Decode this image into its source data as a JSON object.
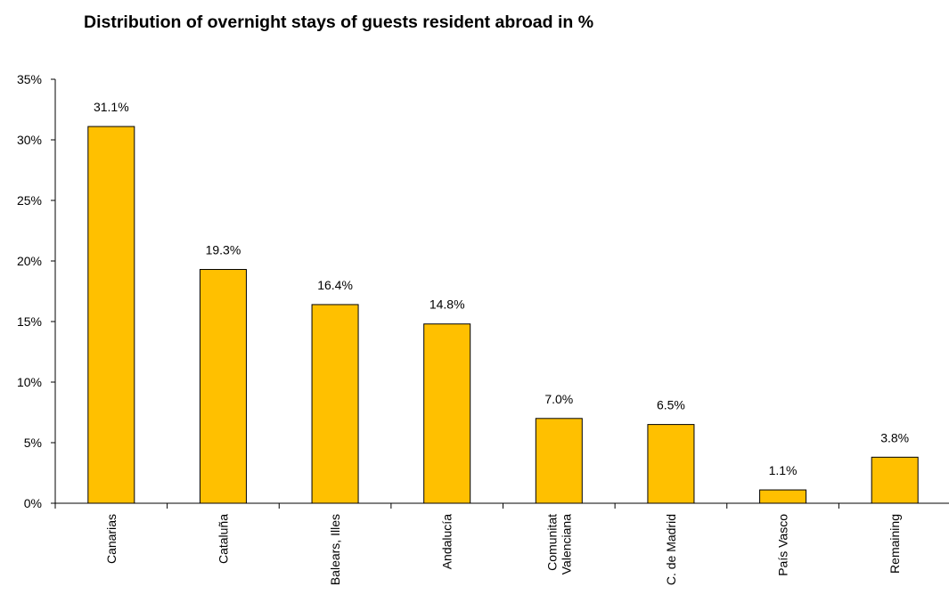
{
  "chart_data": {
    "type": "bar",
    "title": "Distribution of overnight stays of guests resident abroad in %",
    "xlabel": "",
    "ylabel": "",
    "categories": [
      "Canarias",
      "Cataluña",
      "Balears, Illes",
      "Andalucía",
      "Comunitat Valenciana",
      "C. de Madrid",
      "País Vasco",
      "Remaining"
    ],
    "category_label_lines": [
      [
        "Canarias"
      ],
      [
        "Cataluña"
      ],
      [
        "Balears, Illes"
      ],
      [
        "Andalucía"
      ],
      [
        "Comunitat",
        "Valenciana"
      ],
      [
        "C. de Madrid"
      ],
      [
        "País Vasco"
      ],
      [
        "Remaining"
      ]
    ],
    "values": [
      31.1,
      19.3,
      16.4,
      14.8,
      7.0,
      6.5,
      1.1,
      3.8
    ],
    "data_labels": [
      "31.1%",
      "19.3%",
      "16.4%",
      "14.8%",
      "7.0%",
      "6.5%",
      "1.1%",
      "3.8%"
    ],
    "ylim": [
      0,
      35
    ],
    "yticks": [
      0,
      5,
      10,
      15,
      20,
      25,
      30,
      35
    ],
    "ytick_labels": [
      "0%",
      "5%",
      "10%",
      "15%",
      "20%",
      "25%",
      "30%",
      "35%"
    ],
    "grid": false,
    "legend": "none",
    "colors": {
      "bar_fill": "#FFC000",
      "bar_stroke": "#000000",
      "axis": "#000000"
    }
  }
}
